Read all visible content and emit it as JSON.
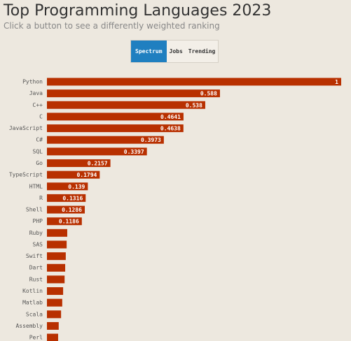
{
  "chart_data": {
    "type": "bar",
    "orientation": "horizontal",
    "title": "Top Programming Languages 2023",
    "subtitle": "Click a button to see a differently weighted ranking",
    "buttons": [
      "Spectrum",
      "Jobs",
      "Trending"
    ],
    "active_button": "Spectrum",
    "categories": [
      "Python",
      "Java",
      "C++",
      "C",
      "JavaScript",
      "C#",
      "SQL",
      "Go",
      "TypeScript",
      "HTML",
      "R",
      "Shell",
      "PHP",
      "Ruby",
      "SAS",
      "Swift",
      "Dart",
      "Rust",
      "Kotlin",
      "Matlab",
      "Scala",
      "Assembly",
      "Perl"
    ],
    "values": [
      1,
      0.588,
      0.538,
      0.4641,
      0.4638,
      0.3973,
      0.3397,
      0.2157,
      0.1794,
      0.139,
      0.1316,
      0.1286,
      0.1186,
      0.069,
      0.067,
      0.064,
      0.062,
      0.06,
      0.055,
      0.052,
      0.048,
      0.04,
      0.038
    ],
    "color": "#b83000",
    "xlim": [
      0,
      1
    ]
  }
}
